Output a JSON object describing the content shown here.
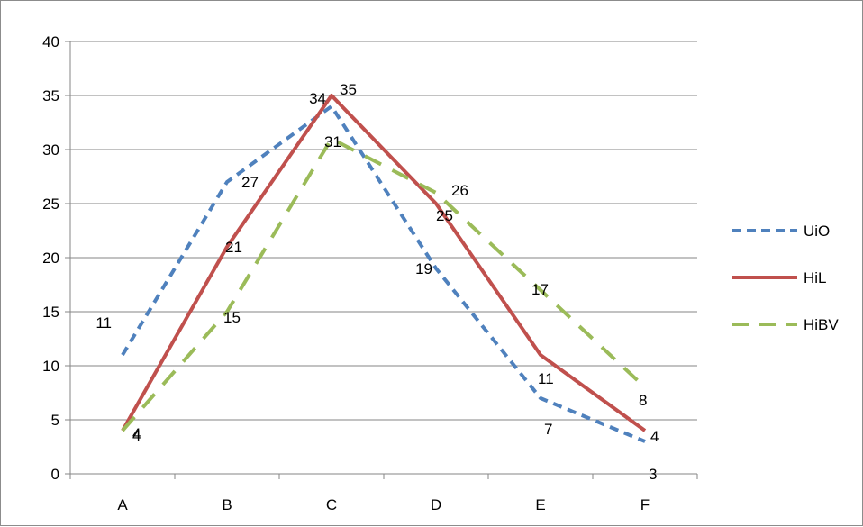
{
  "chart_data": {
    "type": "line",
    "categories": [
      "A",
      "B",
      "C",
      "D",
      "E",
      "F"
    ],
    "ylim": [
      0,
      40
    ],
    "yticks": [
      0,
      5,
      10,
      15,
      20,
      25,
      30,
      35,
      40
    ],
    "grid": "horizontal",
    "legend_position": "right",
    "series": [
      {
        "name": "UiO",
        "values": [
          11,
          27,
          34,
          19,
          7,
          3
        ],
        "color": "#4f81bd",
        "dash": "dashed"
      },
      {
        "name": "HiL",
        "values": [
          4,
          21,
          35,
          25,
          11,
          4
        ],
        "color": "#c0504d",
        "dash": "solid"
      },
      {
        "name": "HiBV",
        "values": [
          4,
          15,
          31,
          26,
          17,
          8
        ],
        "color": "#9bbb59",
        "dash": "long-dash"
      }
    ]
  }
}
